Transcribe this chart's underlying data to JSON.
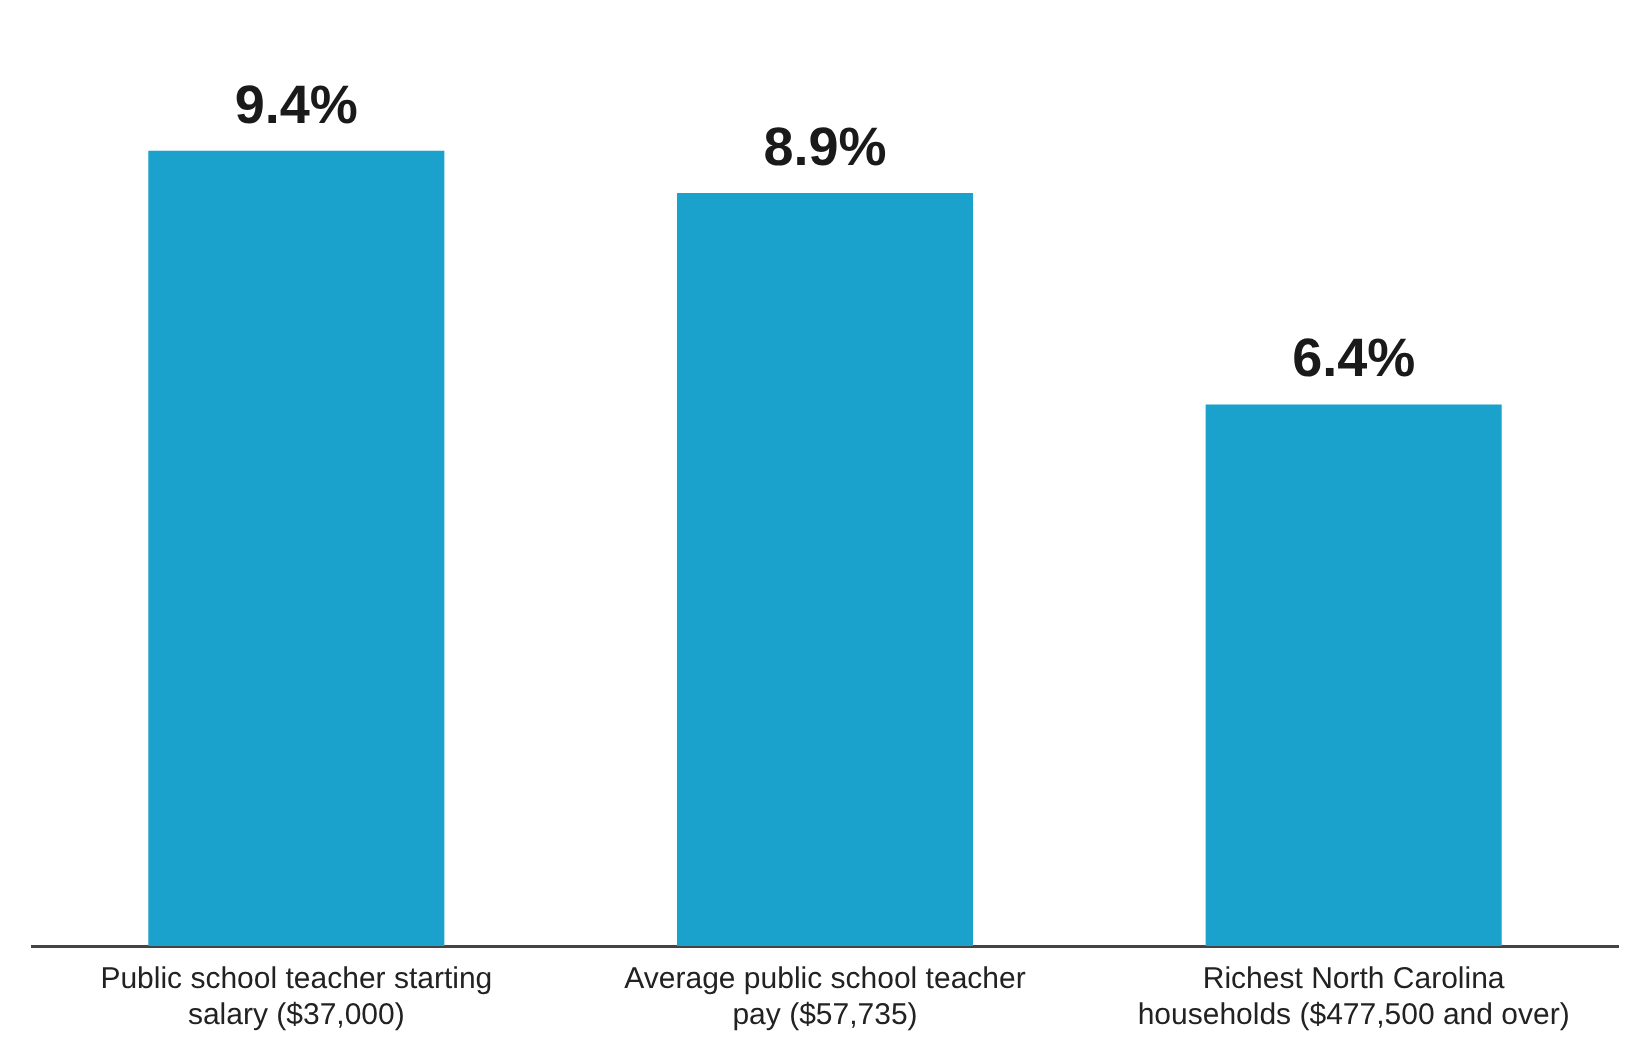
{
  "chart_data": {
    "type": "bar",
    "categories": [
      "Public school teacher starting salary ($37,000)",
      "Average public school teacher pay ($57,735)",
      "Richest North Carolina households ($477,500 and over)"
    ],
    "values": [
      9.4,
      8.9,
      6.4
    ],
    "color": "#1aa1cc",
    "value_labels": [
      "9.4%",
      "8.9%",
      "6.4%"
    ],
    "tick_labels": "x",
    "grid": false,
    "legend": false
  }
}
